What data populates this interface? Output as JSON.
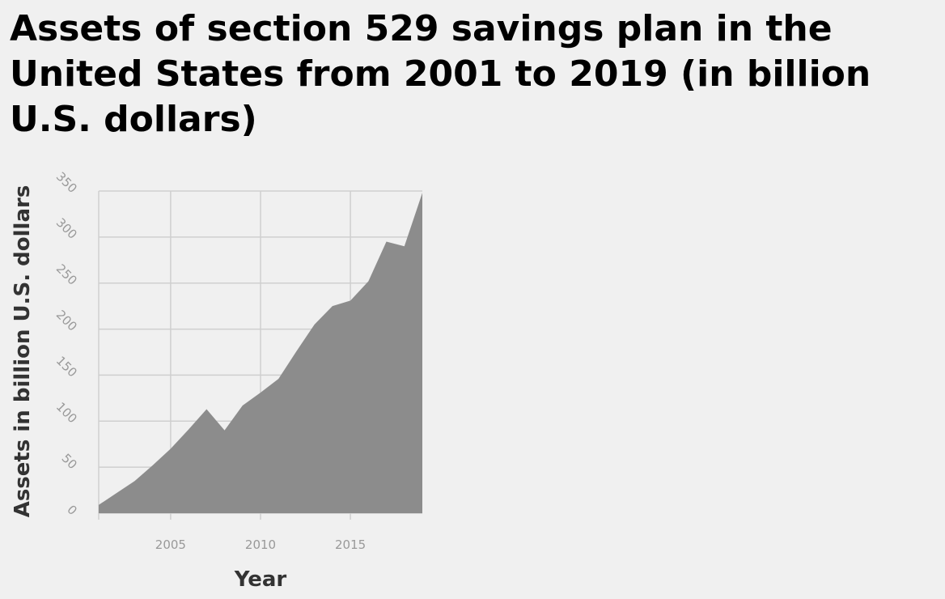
{
  "chart_data": {
    "type": "area",
    "title": "Assets of section 529 savings plan in the United States from 2001 to 2019 (in billion U.S. dollars)",
    "xlabel": "Year",
    "ylabel": "Assets in billion U.S. dollars",
    "x": [
      2001,
      2002,
      2003,
      2004,
      2005,
      2006,
      2007,
      2008,
      2009,
      2010,
      2011,
      2012,
      2013,
      2014,
      2015,
      2016,
      2017,
      2018,
      2019
    ],
    "series": [
      {
        "values": [
          9,
          22,
          35,
          52,
          70,
          91,
          113,
          90,
          117,
          131,
          146,
          176,
          205,
          225,
          231,
          252,
          295,
          290,
          348
        ]
      }
    ],
    "xlim": [
      2001,
      2019
    ],
    "ylim": [
      0,
      350
    ],
    "x_ticks": [
      2005,
      2010,
      2015
    ],
    "y_ticks": [
      0,
      50,
      100,
      150,
      200,
      250,
      300,
      350
    ],
    "grid": true,
    "fill_color": "#8c8c8c"
  }
}
